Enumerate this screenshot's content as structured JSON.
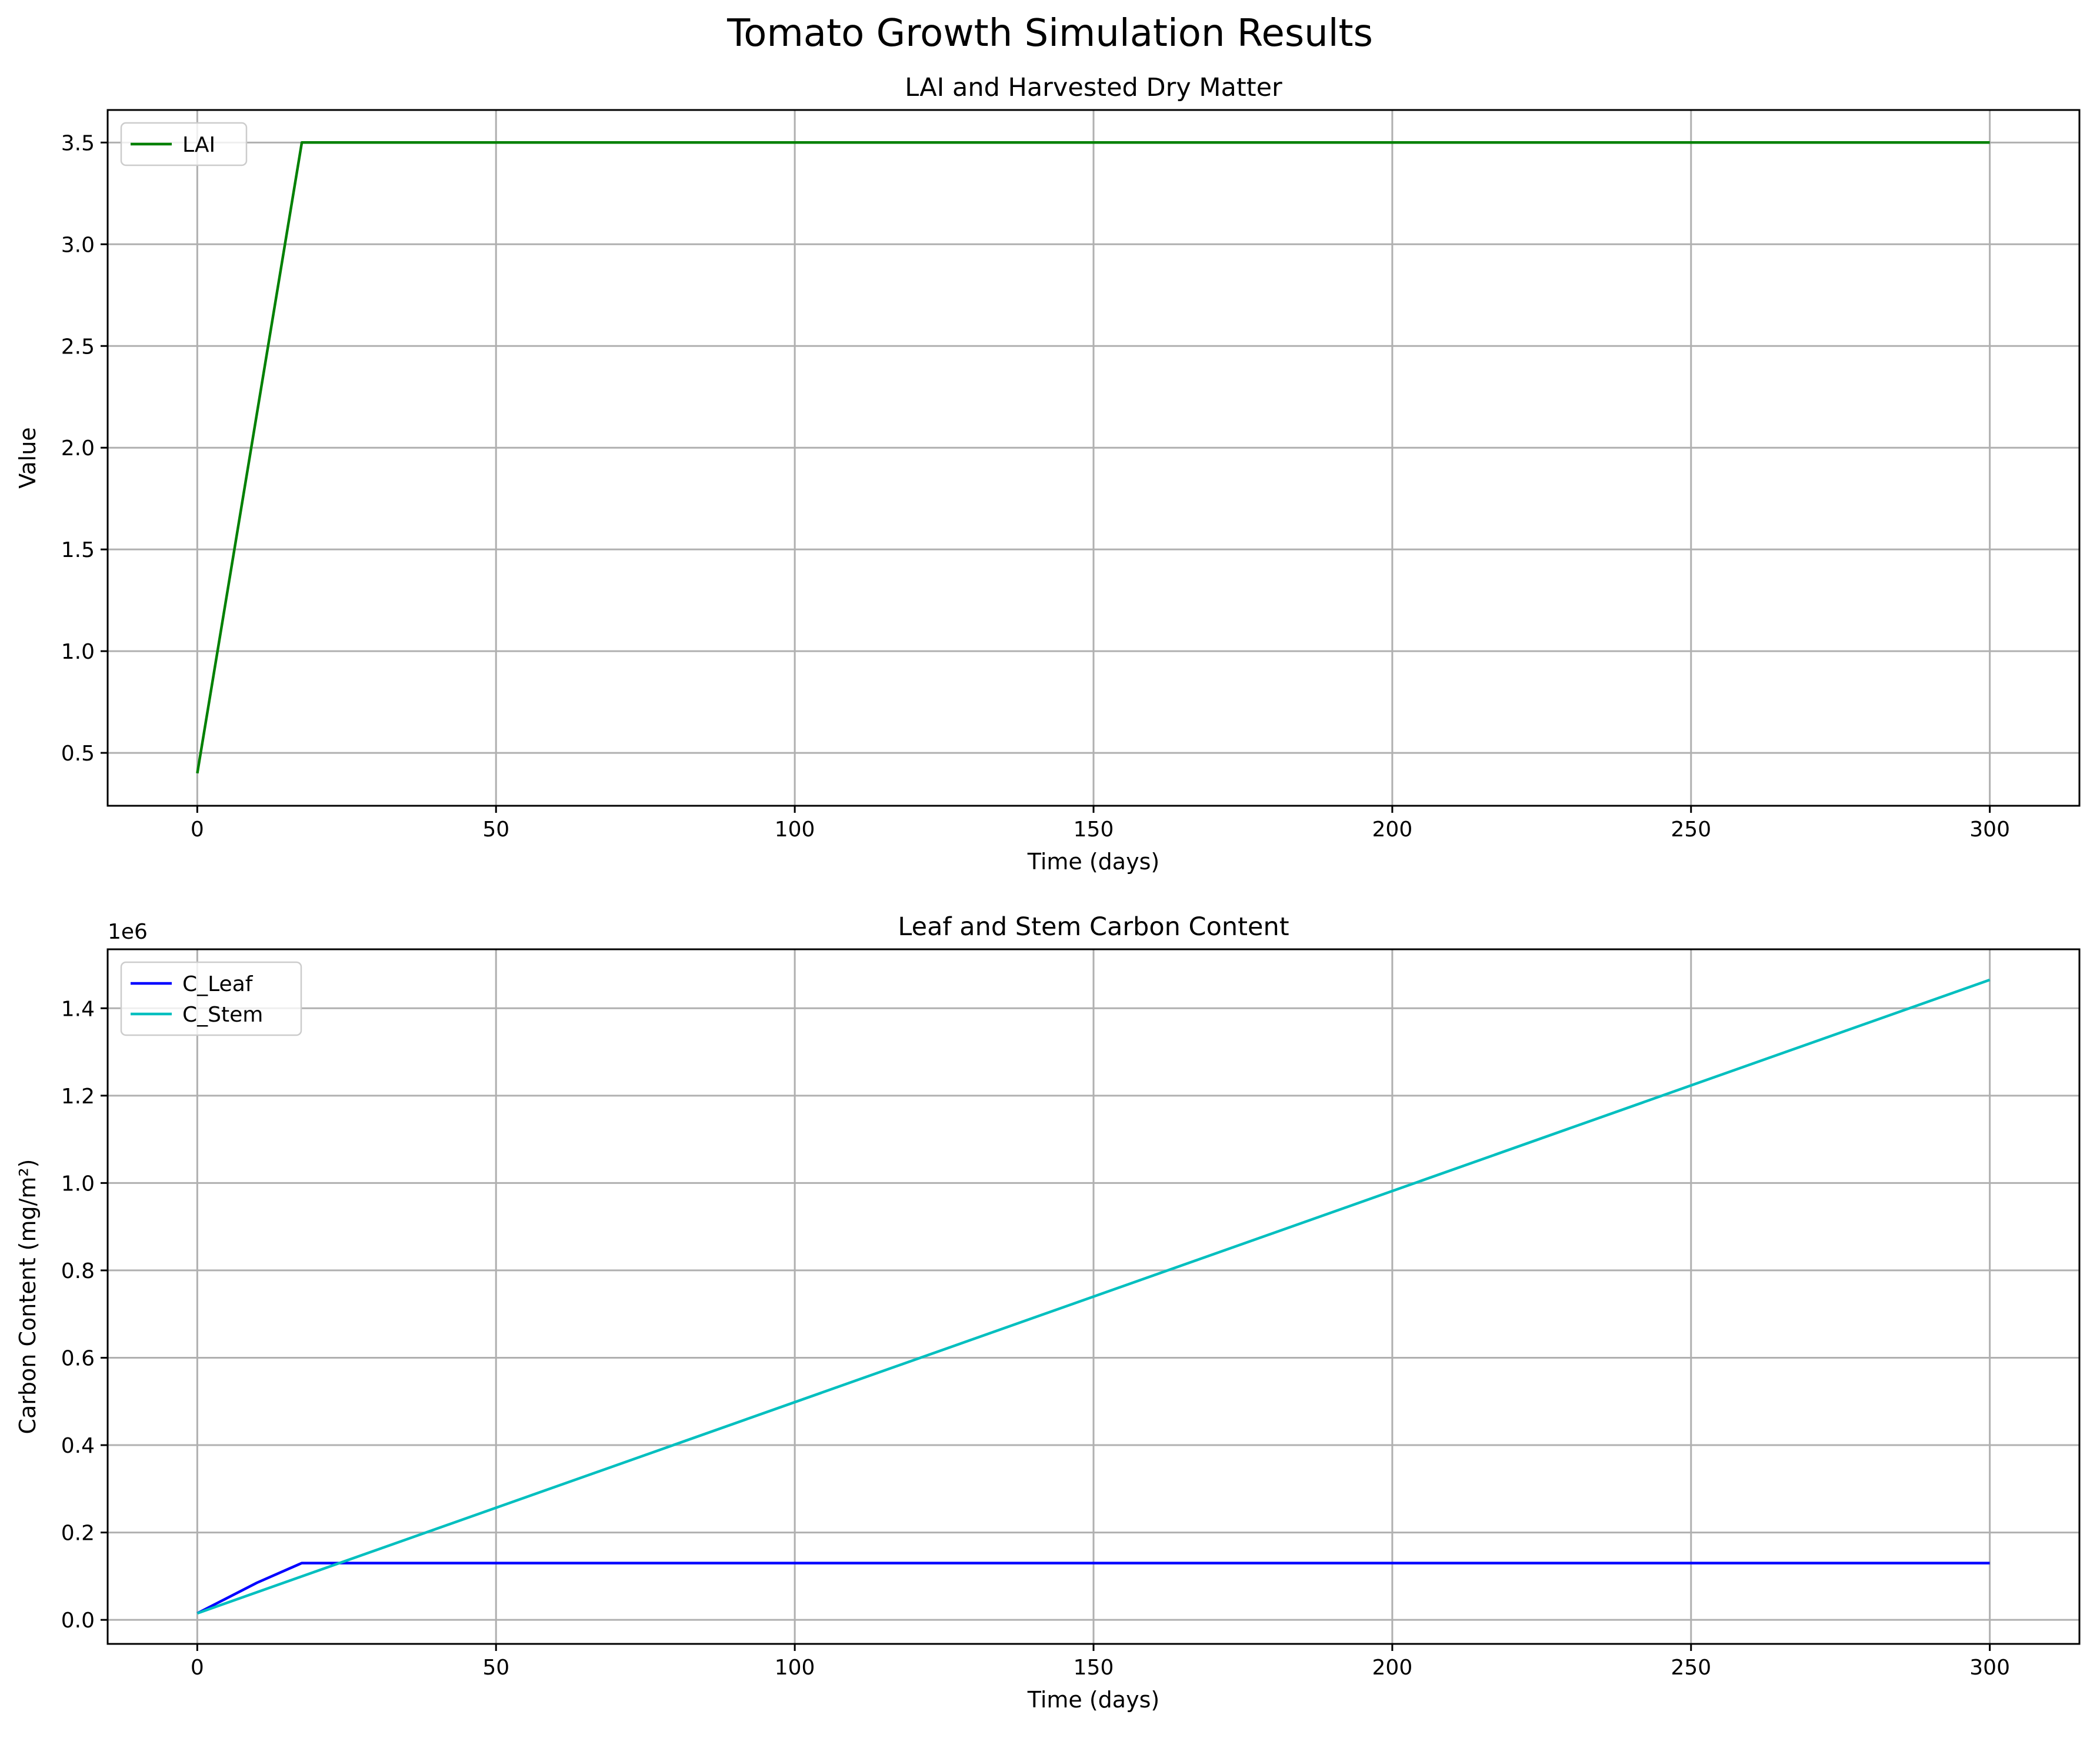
{
  "figure": {
    "title": "Tomato Growth Simulation Results"
  },
  "chart_data": [
    {
      "type": "line",
      "title": "LAI and Harvested Dry Matter",
      "xlabel": "Time (days)",
      "ylabel": "Value",
      "xlim": [
        -15,
        315
      ],
      "ylim": [
        0.24,
        3.66
      ],
      "xticks": [
        0,
        50,
        100,
        150,
        200,
        250,
        300
      ],
      "yticks": [
        0.5,
        1.0,
        1.5,
        2.0,
        2.5,
        3.0,
        3.5
      ],
      "ytick_labels": [
        "0.5",
        "1.0",
        "1.5",
        "2.0",
        "2.5",
        "3.0",
        "3.5"
      ],
      "offset_label": "",
      "grid": true,
      "legend_position": "upper left",
      "series": [
        {
          "name": "LAI",
          "color": "#008000",
          "x": [
            0,
            17.5,
            300
          ],
          "y": [
            0.4,
            3.5,
            3.5
          ]
        }
      ]
    },
    {
      "type": "line",
      "title": "Leaf and Stem Carbon Content",
      "xlabel": "Time (days)",
      "ylabel": "Carbon Content (mg/m²)",
      "xlim": [
        -15,
        315
      ],
      "ylim": [
        -0.055,
        1.535
      ],
      "xticks": [
        0,
        50,
        100,
        150,
        200,
        250,
        300
      ],
      "yticks": [
        0.0,
        0.2,
        0.4,
        0.6,
        0.8,
        1.0,
        1.2,
        1.4
      ],
      "ytick_labels": [
        "0.0",
        "0.2",
        "0.4",
        "0.6",
        "0.8",
        "1.0",
        "1.2",
        "1.4"
      ],
      "offset_label": "1e6",
      "grid": true,
      "legend_position": "upper left",
      "series": [
        {
          "name": "C_Leaf",
          "color": "#0000ff",
          "x": [
            0,
            5,
            10,
            15,
            17.5,
            300
          ],
          "y": [
            0.015,
            0.05,
            0.085,
            0.115,
            0.13,
            0.13
          ]
        },
        {
          "name": "C_Stem",
          "color": "#00bfbf",
          "x": [
            0,
            300
          ],
          "y": [
            0.015,
            1.465
          ]
        }
      ]
    }
  ]
}
